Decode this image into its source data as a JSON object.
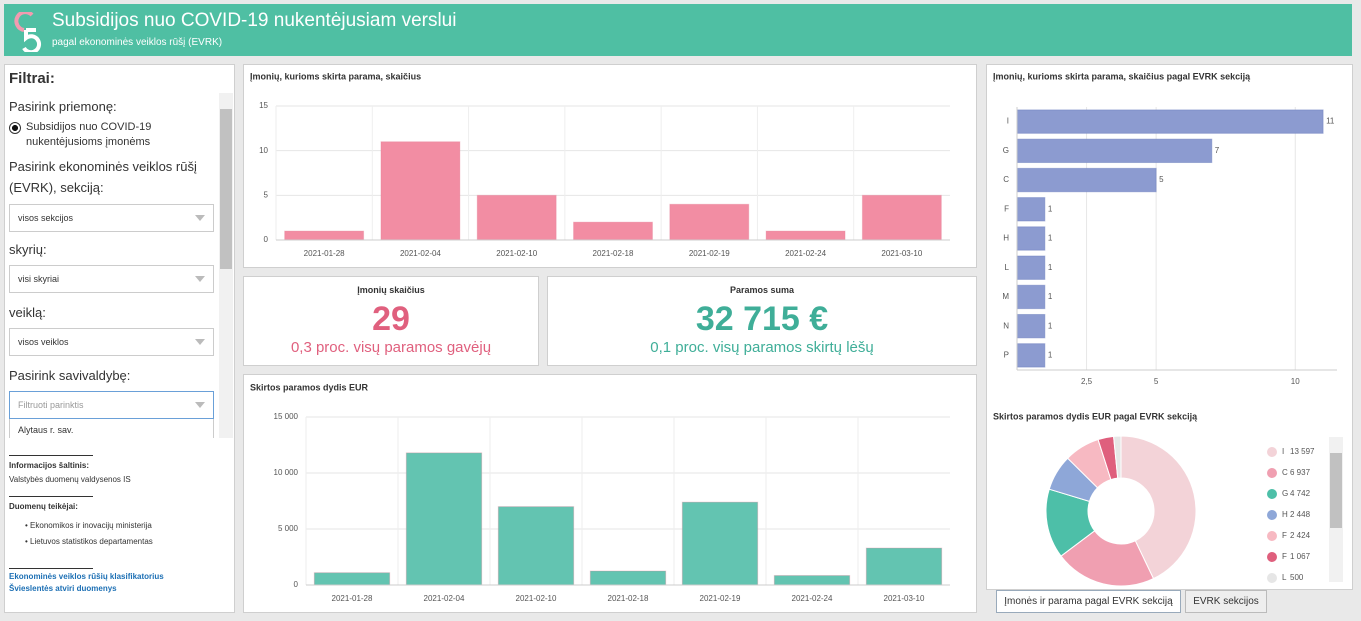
{
  "header": {
    "title": "Subsidijos nuo COVID-19 nukentėjusiam verslui",
    "subtitle": "pagal ekonominės veiklos rūšį (EVRK)"
  },
  "filters": {
    "title": "Filtrai:",
    "measure_label": "Pasirink priemonę:",
    "measure_option": "Subsidijos nuo COVID-19 nukentėjusioms įmonėms",
    "section_label": "Pasirink ekonominės veiklos rūšį (EVRK), sekciją:",
    "section_value": "visos sekcijos",
    "division_label": "skyrių:",
    "division_value": "visi skyriai",
    "activity_label": "veiklą:",
    "activity_value": "visos veiklos",
    "municipality_label": "Pasirink savivaldybę:",
    "municipality_placeholder": "Filtruoti parinktis",
    "municipality_option": "Alytaus r. sav."
  },
  "sources": {
    "source_label": "Informacijos šaltinis:",
    "source": "Valstybės duomenų valdysenos IS",
    "providers_label": "Duomenų teikėjai:",
    "providers": [
      "Ekonomikos ir inovacijų ministerija",
      "Lietuvos statistikos departamentas"
    ],
    "links": [
      "Ekonominės veiklos rūšių klasifikatorius",
      "Švieslentės atviri duomenys"
    ]
  },
  "kpis": [
    {
      "title": "Įmonių skaičius",
      "value": "29",
      "note": "0,3 proc. visų paramos gavėjų",
      "color": "#e0607e"
    },
    {
      "title": "Paramos suma",
      "value": "32 715 €",
      "note": "0,1 proc. visų paramos skirtų lėšų",
      "color": "#3fae98"
    }
  ],
  "tabs": [
    "Įmonės ir parama pagal EVRK sekciją",
    "EVRK sekcijos"
  ],
  "chart_data": [
    {
      "type": "bar",
      "title": "Įmonių, kurioms skirta parama, skaičius",
      "categories": [
        "2021-01-28",
        "2021-02-04",
        "2021-02-10",
        "2021-02-18",
        "2021-02-19",
        "2021-02-24",
        "2021-03-10"
      ],
      "values": [
        1,
        11,
        5,
        2,
        4,
        1,
        5
      ],
      "color": "#f28da3",
      "ylim": [
        0,
        15
      ],
      "yticks": [
        0,
        5,
        10,
        15
      ],
      "grid": true
    },
    {
      "type": "bar",
      "title": "Skirtos paramos dydis EUR",
      "categories": [
        "2021-01-28",
        "2021-02-04",
        "2021-02-10",
        "2021-02-18",
        "2021-02-19",
        "2021-02-24",
        "2021-03-10"
      ],
      "values": [
        1100,
        11800,
        7000,
        1250,
        7400,
        850,
        3300
      ],
      "color": "#63c4b1",
      "ylim": [
        0,
        15000
      ],
      "yticks": [
        0,
        {
          "value": 5000,
          "label": "5 000"
        },
        {
          "value": 10000,
          "label": "10 000"
        },
        {
          "value": 15000,
          "label": "15 000"
        }
      ],
      "grid": true
    },
    {
      "type": "hbar",
      "title": "Įmonių, kurioms skirta parama, skaičius pagal EVRK sekciją",
      "categories": [
        "I",
        "G",
        "C",
        "F",
        "H",
        "L",
        "M",
        "N",
        "P"
      ],
      "values": [
        11,
        7,
        5,
        1,
        1,
        1,
        1,
        1,
        1
      ],
      "color": "#8c9bd0",
      "xlim": [
        0,
        11.5
      ],
      "xticks": [
        {
          "value": 2.5,
          "label": "2,5"
        },
        5,
        10
      ],
      "grid": true
    },
    {
      "type": "pie",
      "donut": true,
      "title": "Skirtos paramos dydis EUR pagal EVRK sekciją",
      "categories": [
        "I",
        "C",
        "G",
        "H",
        "F",
        "F",
        "L"
      ],
      "values": [
        13597,
        6937,
        4742,
        2448,
        2424,
        1067,
        500
      ],
      "value_labels": [
        "13 597",
        "6 937",
        "4 742",
        "2 448",
        "2 424",
        "1 067",
        "500"
      ],
      "colors": [
        "#f3d3d8",
        "#f09fb1",
        "#4dbfa8",
        "#8ea7d8",
        "#f7b9c2",
        "#df5f7d",
        "#e6e6e6"
      ]
    }
  ]
}
